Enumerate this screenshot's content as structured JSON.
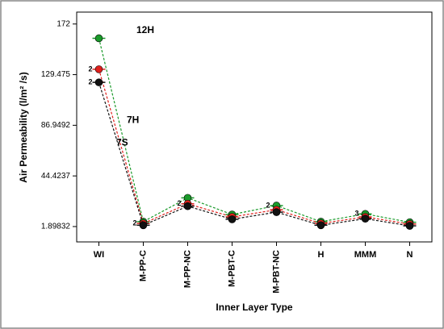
{
  "chart_data": {
    "type": "line",
    "ylabel": "Air Permeability (l/m² /s)",
    "xlabel": "Inner Layer Type",
    "categories": [
      "WI",
      "M-PP-C",
      "M-PP-NC",
      "M-PBT-C",
      "M-PBT-NC",
      "H",
      "MMM",
      "N"
    ],
    "series": [
      {
        "name": "12H",
        "color": "#1a9a2a",
        "values": [
          160,
          6,
          26,
          12,
          19.5,
          6,
          12.5,
          5.5
        ]
      },
      {
        "name": "7H",
        "color": "#e0201c",
        "values": [
          134,
          4.5,
          21,
          10,
          16,
          4.5,
          10,
          4
        ]
      },
      {
        "name": "7S",
        "color": "#111111",
        "values": [
          123,
          3,
          19,
          8,
          14,
          3,
          8.5,
          2.5
        ]
      }
    ],
    "annotations": [
      "2",
      "2",
      "2",
      "2",
      "2",
      "3"
    ],
    "ylim": [
      -11,
      182
    ],
    "yticks": [
      1.89832,
      44.4237,
      86.9492,
      129.475,
      172
    ]
  }
}
